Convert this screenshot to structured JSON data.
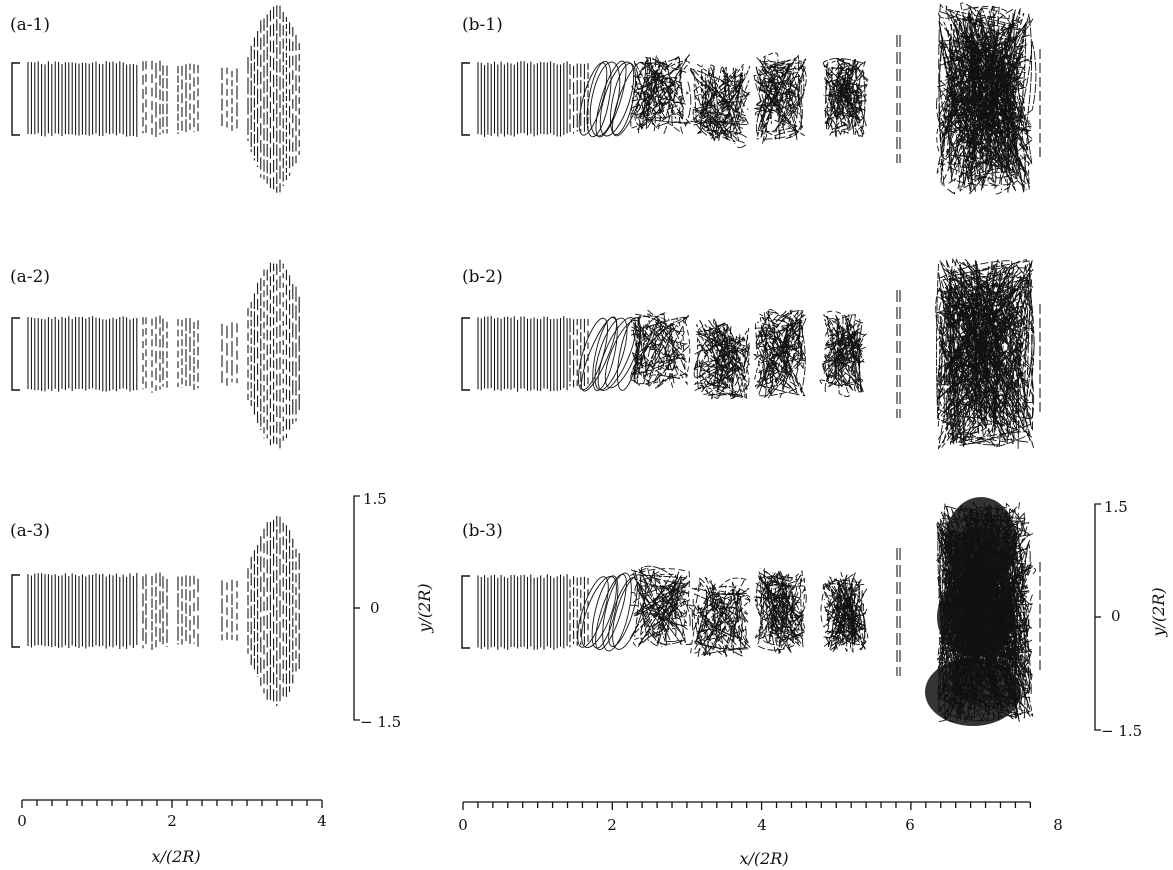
{
  "panels": {
    "a1": "(a-1)",
    "a2": "(a-2)",
    "a3": "(a-3)",
    "b1": "(b-1)",
    "b2": "(b-2)",
    "b3": "(b-3)"
  },
  "axes": {
    "left_x": {
      "ticks": [
        "0",
        "2",
        "4"
      ],
      "label": "x/(2R)"
    },
    "right_x": {
      "ticks": [
        "0",
        "2",
        "4",
        "6",
        "8"
      ],
      "label": "x/(2R)"
    },
    "left_y": {
      "ticks": [
        "1.5",
        "0",
        "− 1.5"
      ],
      "label": "y/(2R)"
    },
    "right_y": {
      "ticks": [
        "1.5",
        "0",
        "− 1.5"
      ],
      "label": "y/(2R)"
    }
  }
}
